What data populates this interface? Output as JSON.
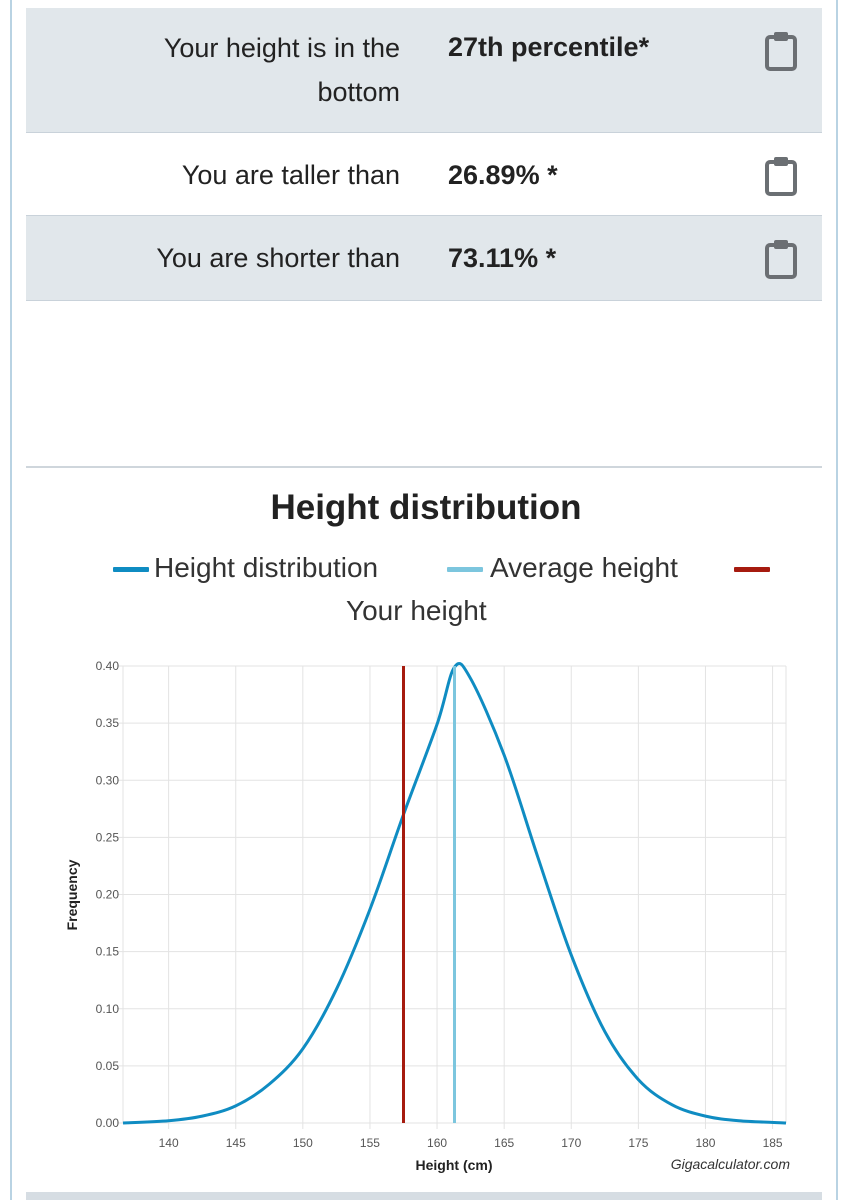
{
  "results": [
    {
      "label_line1": "Your height is in the",
      "label_line2": "bottom",
      "value": "27th percentile*",
      "copy_icon": "clipboard-icon"
    },
    {
      "label_line1": "You are taller than",
      "value": "26.89% *",
      "copy_icon": "clipboard-icon"
    },
    {
      "label_line1": "You are shorter than",
      "value": "73.11% *",
      "copy_icon": "clipboard-icon"
    }
  ],
  "colors": {
    "row_shaded": "#e1e7eb",
    "distribution": "#0f8cc2",
    "average": "#7cc6de",
    "your_height": "#a61b0f"
  },
  "chart": {
    "title": "Height distribution",
    "legend": [
      {
        "label": "Height distribution",
        "color": "#0f8cc2"
      },
      {
        "label": "Average height",
        "color": "#7cc6de"
      },
      {
        "label": "Your height",
        "color": "#a61b0f"
      }
    ],
    "credit": "Gigacalculator.com"
  },
  "chart_data": {
    "type": "line",
    "title": "Height distribution",
    "xlabel": "Height (cm)",
    "ylabel": "Frequency",
    "xlim": [
      136.6,
      186
    ],
    "ylim": [
      0,
      0.4
    ],
    "x_ticks": [
      140,
      145,
      150,
      155,
      160,
      165,
      170,
      175,
      180,
      185
    ],
    "y_ticks": [
      0.0,
      0.05,
      0.1,
      0.15,
      0.2,
      0.25,
      0.3,
      0.35,
      0.4
    ],
    "y_tick_labels": [
      "0.00",
      "0.05",
      "0.10",
      "0.15",
      "0.20",
      "0.25",
      "0.30",
      "0.35",
      "0.40"
    ],
    "grid": true,
    "series": [
      {
        "name": "Height distribution",
        "x": [
          136.6,
          140,
          142.5,
          145,
          147.5,
          150,
          152.5,
          155,
          157.5,
          160,
          161.3,
          162.5,
          165,
          167.5,
          170,
          172.5,
          175,
          177.5,
          180,
          182.5,
          186
        ],
        "y": [
          0.0,
          0.002,
          0.006,
          0.015,
          0.034,
          0.065,
          0.117,
          0.187,
          0.27,
          0.349,
          0.399,
          0.389,
          0.322,
          0.233,
          0.147,
          0.08,
          0.038,
          0.016,
          0.006,
          0.002,
          0.0
        ]
      }
    ],
    "average_height": 161.3,
    "your_height": 157.5
  }
}
